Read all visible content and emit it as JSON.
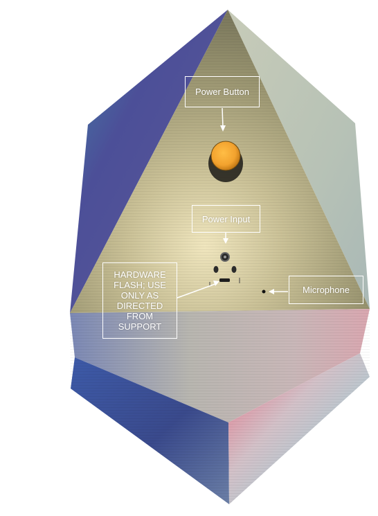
{
  "device": {
    "colors": {
      "top_face_light": "#e3d9ae",
      "top_face_dark": "#918c63",
      "left_face": "#4e4b92",
      "right_face": "#b9c2b8",
      "bottom_left": "#3b4a8f",
      "bottom_right_highlight": "#e86a7d",
      "button_orange": "#f2a22e",
      "callout_border": "#ffffff"
    }
  },
  "callouts": {
    "power_button": "Power Button",
    "power_input": "Power Input",
    "hardware_flash": "HARDWARE FLASH; USE ONLY AS DIRECTED FROM SUPPORT",
    "microphone": "Microphone"
  }
}
